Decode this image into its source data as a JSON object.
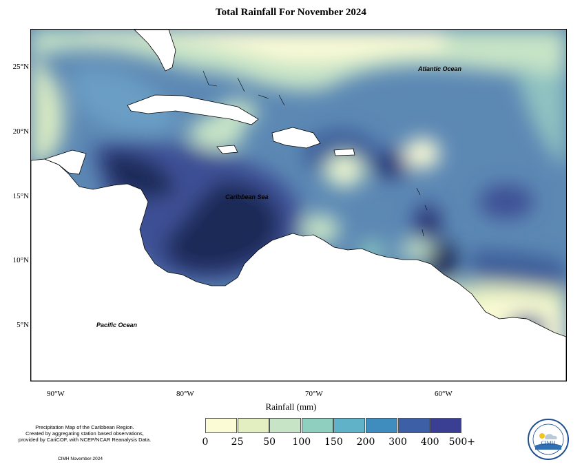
{
  "title": "Total Rainfall For November 2024",
  "lat_ticks": [
    "25°N",
    "20°N",
    "15°N",
    "10°N",
    "5°N"
  ],
  "lon_ticks": [
    "90°W",
    "80°W",
    "70°W",
    "60°W"
  ],
  "map_labels": {
    "atlantic": "Atlantic Ocean",
    "caribbean": "Caribbean Sea",
    "pacific": "Pacific Ocean"
  },
  "legend": {
    "title": "Rainfall (mm)",
    "labels": [
      "0",
      "25",
      "50",
      "100",
      "150",
      "200",
      "300",
      "400",
      "500+"
    ],
    "colors": [
      "#fbfbd6",
      "#e3efc0",
      "#c7e4c6",
      "#8fcfbf",
      "#5fb2c8",
      "#3f8dbf",
      "#3d5fa6",
      "#3b3f94",
      "#1a2450"
    ]
  },
  "note": {
    "lines": [
      "Precipitation Map of the Caribbean Region.",
      "Created by aggregating station based observations,",
      "provided by CariCOF, with NCEP/NCAR Reanalysis Data."
    ],
    "credit": "CIMH November-2024"
  },
  "logo": {
    "text": "CIMH"
  }
}
